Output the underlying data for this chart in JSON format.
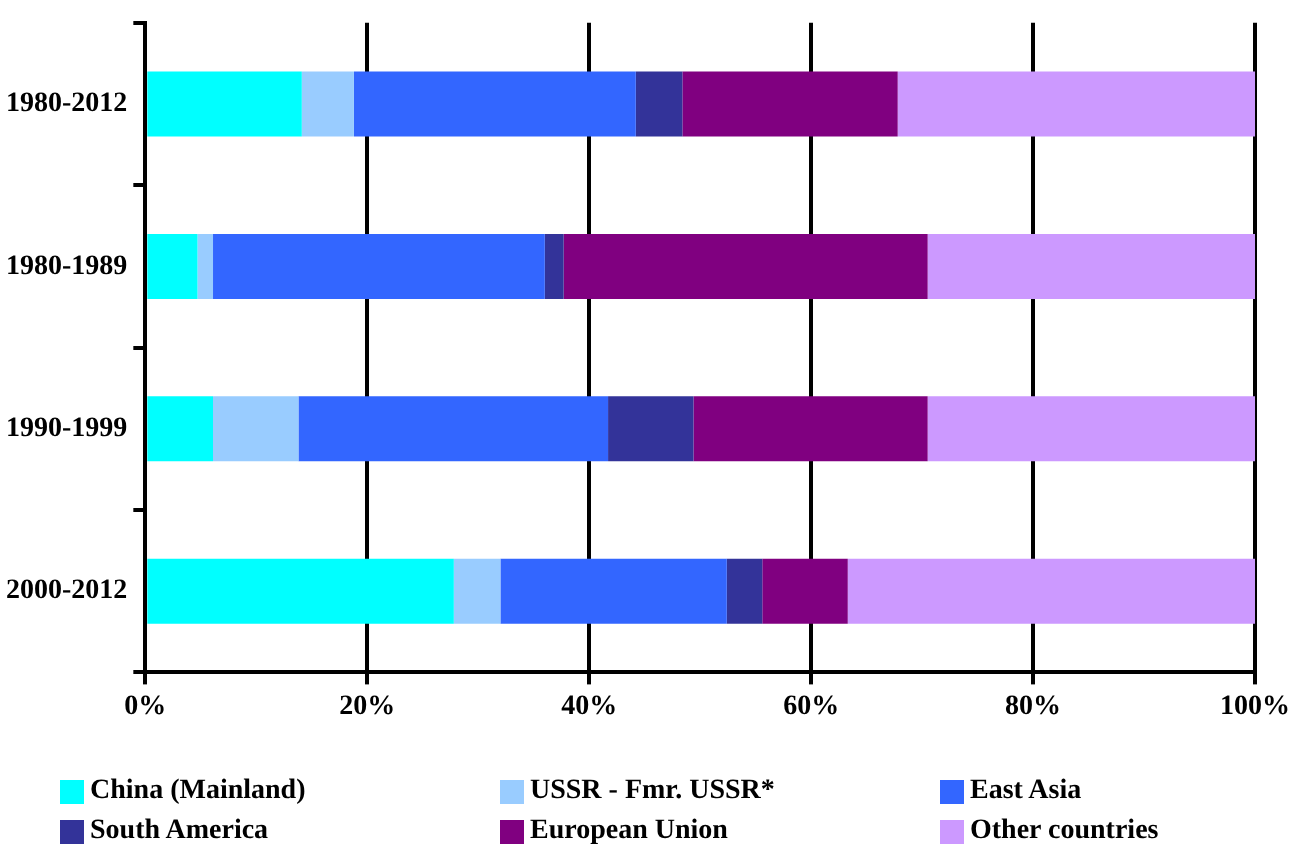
{
  "chart_data": {
    "type": "bar",
    "orientation": "horizontal",
    "stacked": true,
    "categories": [
      "1980-2012",
      "1980-1989",
      "1990-1999",
      "2000-2012"
    ],
    "series": [
      {
        "name": "China (Mainland)",
        "color": "#00ffff",
        "values": [
          14.1,
          4.7,
          6.1,
          27.8
        ]
      },
      {
        "name": "USSR - Fmr. USSR*",
        "color": "#99ccff",
        "values": [
          4.7,
          1.4,
          7.7,
          4.2
        ]
      },
      {
        "name": "East Asia",
        "color": "#3366ff",
        "values": [
          25.4,
          29.9,
          27.9,
          20.4
        ]
      },
      {
        "name": "South America",
        "color": "#333399",
        "values": [
          4.2,
          1.7,
          7.7,
          3.2
        ]
      },
      {
        "name": "European Union",
        "color": "#800080",
        "values": [
          19.4,
          32.8,
          21.1,
          7.7
        ]
      },
      {
        "name": "Other countries",
        "color": "#cc99ff",
        "values": [
          32.2,
          29.5,
          29.5,
          36.7
        ]
      }
    ],
    "xlim": [
      0,
      100
    ],
    "xticks": [
      {
        "value": 0,
        "label": "0%"
      },
      {
        "value": 20,
        "label": "20%"
      },
      {
        "value": 40,
        "label": "40%"
      },
      {
        "value": 60,
        "label": "60%"
      },
      {
        "value": 80,
        "label": "80%"
      },
      {
        "value": 100,
        "label": "100%"
      }
    ],
    "grid": "x",
    "legend": "bottom"
  }
}
